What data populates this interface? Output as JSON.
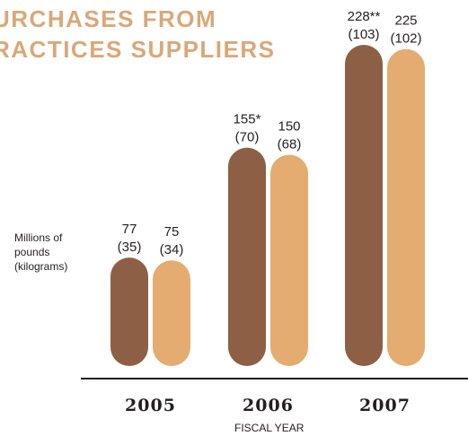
{
  "title_lines": [
    "URCHASES FROM",
    "RACTICES SUPPLIERS"
  ],
  "colors": {
    "series_a": "#8d6046",
    "series_b": "#e4ac70",
    "title": "#d9a878",
    "text": "#231f20"
  },
  "chart_data": {
    "type": "bar",
    "title": "URCHASES FROM RACTICES SUPPLIERS",
    "xlabel": "FISCAL YEAR",
    "ylabel_lines": [
      "Millions of",
      "pounds",
      "(kilograms)"
    ],
    "categories": [
      "2005",
      "2006",
      "2007"
    ],
    "series": [
      {
        "values": [
          77,
          155,
          228
        ],
        "value_labels": [
          "77",
          "155*",
          "228**"
        ],
        "kg_labels": [
          "(35)",
          "(70)",
          "(103)"
        ]
      },
      {
        "values": [
          75,
          150,
          225
        ],
        "value_labels": [
          "75",
          "150",
          "225"
        ],
        "kg_labels": [
          "(34)",
          "(68)",
          "(102)"
        ]
      }
    ],
    "ylim": [
      0,
      240
    ],
    "grid": false,
    "legend": "none"
  }
}
